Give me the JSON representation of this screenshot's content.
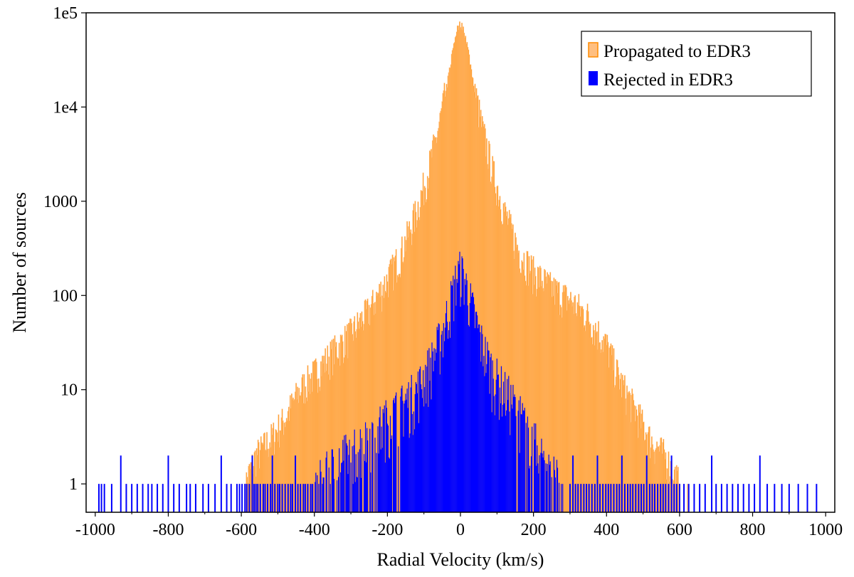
{
  "chart_data": {
    "type": "bar",
    "x_log": false,
    "y_log": true,
    "xlabel": "Radial Velocity (km/s)",
    "ylabel": "Number of sources",
    "xlim": [
      -1025,
      1025
    ],
    "ylim": [
      0.5,
      100000
    ],
    "x_ticks": [
      -1000,
      -800,
      -600,
      -400,
      -200,
      0,
      200,
      400,
      600,
      800,
      1000
    ],
    "x_tick_labels": [
      "-1000",
      "-800",
      "-600",
      "-400",
      "-200",
      "0",
      "200",
      "400",
      "600",
      "800",
      "1000"
    ],
    "y_ticks": [
      1,
      10,
      100,
      1000,
      10000,
      100000
    ],
    "y_tick_labels": [
      "1",
      "10",
      "100",
      "1000",
      "1e4",
      "1e5"
    ],
    "grid": false,
    "legend_position": "top-right",
    "bin_width_kms": 2,
    "series": [
      {
        "name": "Propagated to EDR3",
        "color": "#ff8c00",
        "edge_color": "#ffbf80",
        "profile_points": [
          [
            -590,
            1
          ],
          [
            -560,
            2
          ],
          [
            -520,
            3
          ],
          [
            -480,
            5
          ],
          [
            -440,
            10
          ],
          [
            -400,
            15
          ],
          [
            -350,
            25
          ],
          [
            -300,
            40
          ],
          [
            -250,
            70
          ],
          [
            -200,
            150
          ],
          [
            -160,
            300
          ],
          [
            -120,
            800
          ],
          [
            -90,
            2000
          ],
          [
            -60,
            6000
          ],
          [
            -40,
            15000
          ],
          [
            -20,
            45000
          ],
          [
            -10,
            70000
          ],
          [
            0,
            80000
          ],
          [
            10,
            70000
          ],
          [
            20,
            45000
          ],
          [
            40,
            15000
          ],
          [
            60,
            6000
          ],
          [
            90,
            2000
          ],
          [
            120,
            800
          ],
          [
            160,
            300
          ],
          [
            200,
            180
          ],
          [
            250,
            120
          ],
          [
            300,
            90
          ],
          [
            350,
            60
          ],
          [
            400,
            30
          ],
          [
            440,
            12
          ],
          [
            480,
            6
          ],
          [
            520,
            3
          ],
          [
            560,
            2
          ],
          [
            600,
            1
          ]
        ],
        "outlier_bins": [
          -570,
          -562,
          -555,
          -545,
          555,
          565,
          572,
          580,
          590,
          600,
          612,
          622
        ]
      },
      {
        "name": "Rejected in EDR3",
        "color": "#0000ff",
        "profile_points": [
          [
            -400,
            1
          ],
          [
            -320,
            2
          ],
          [
            -260,
            3
          ],
          [
            -200,
            5
          ],
          [
            -160,
            7
          ],
          [
            -120,
            10
          ],
          [
            -80,
            20
          ],
          [
            -50,
            40
          ],
          [
            -30,
            80
          ],
          [
            -10,
            160
          ],
          [
            0,
            190
          ],
          [
            10,
            160
          ],
          [
            30,
            80
          ],
          [
            60,
            30
          ],
          [
            90,
            15
          ],
          [
            120,
            10
          ],
          [
            160,
            6
          ],
          [
            200,
            3
          ],
          [
            240,
            1.5
          ],
          [
            280,
            1
          ]
        ],
        "outlier_bins": [
          -990,
          -983,
          -975,
          -955,
          -930,
          -915,
          -900,
          -885,
          -870,
          -855,
          -845,
          -830,
          -815,
          -800,
          -785,
          -770,
          -750,
          -740,
          -725,
          -705,
          -690,
          -672,
          -655,
          -640,
          -628,
          -612,
          -605,
          -598,
          -590,
          -585,
          -578,
          -570,
          -565,
          -560,
          -555,
          -548,
          -540,
          -535,
          -528,
          -520,
          -515,
          -508,
          -500,
          -495,
          -488,
          -480,
          -472,
          -465,
          -460,
          -452,
          -445,
          -438,
          -430,
          -425,
          -418,
          -410,
          -405,
          300,
          308,
          315,
          322,
          330,
          338,
          345,
          352,
          360,
          368,
          375,
          382,
          390,
          398,
          405,
          412,
          420,
          428,
          435,
          442,
          450,
          458,
          465,
          472,
          480,
          488,
          495,
          502,
          510,
          518,
          525,
          532,
          540,
          548,
          555,
          562,
          570,
          578,
          585,
          592,
          600,
          612,
          625,
          640,
          655,
          670,
          688,
          700,
          715,
          730,
          745,
          760,
          775,
          790,
          805,
          820,
          840,
          860,
          880,
          900,
          925,
          950,
          975
        ]
      }
    ]
  }
}
